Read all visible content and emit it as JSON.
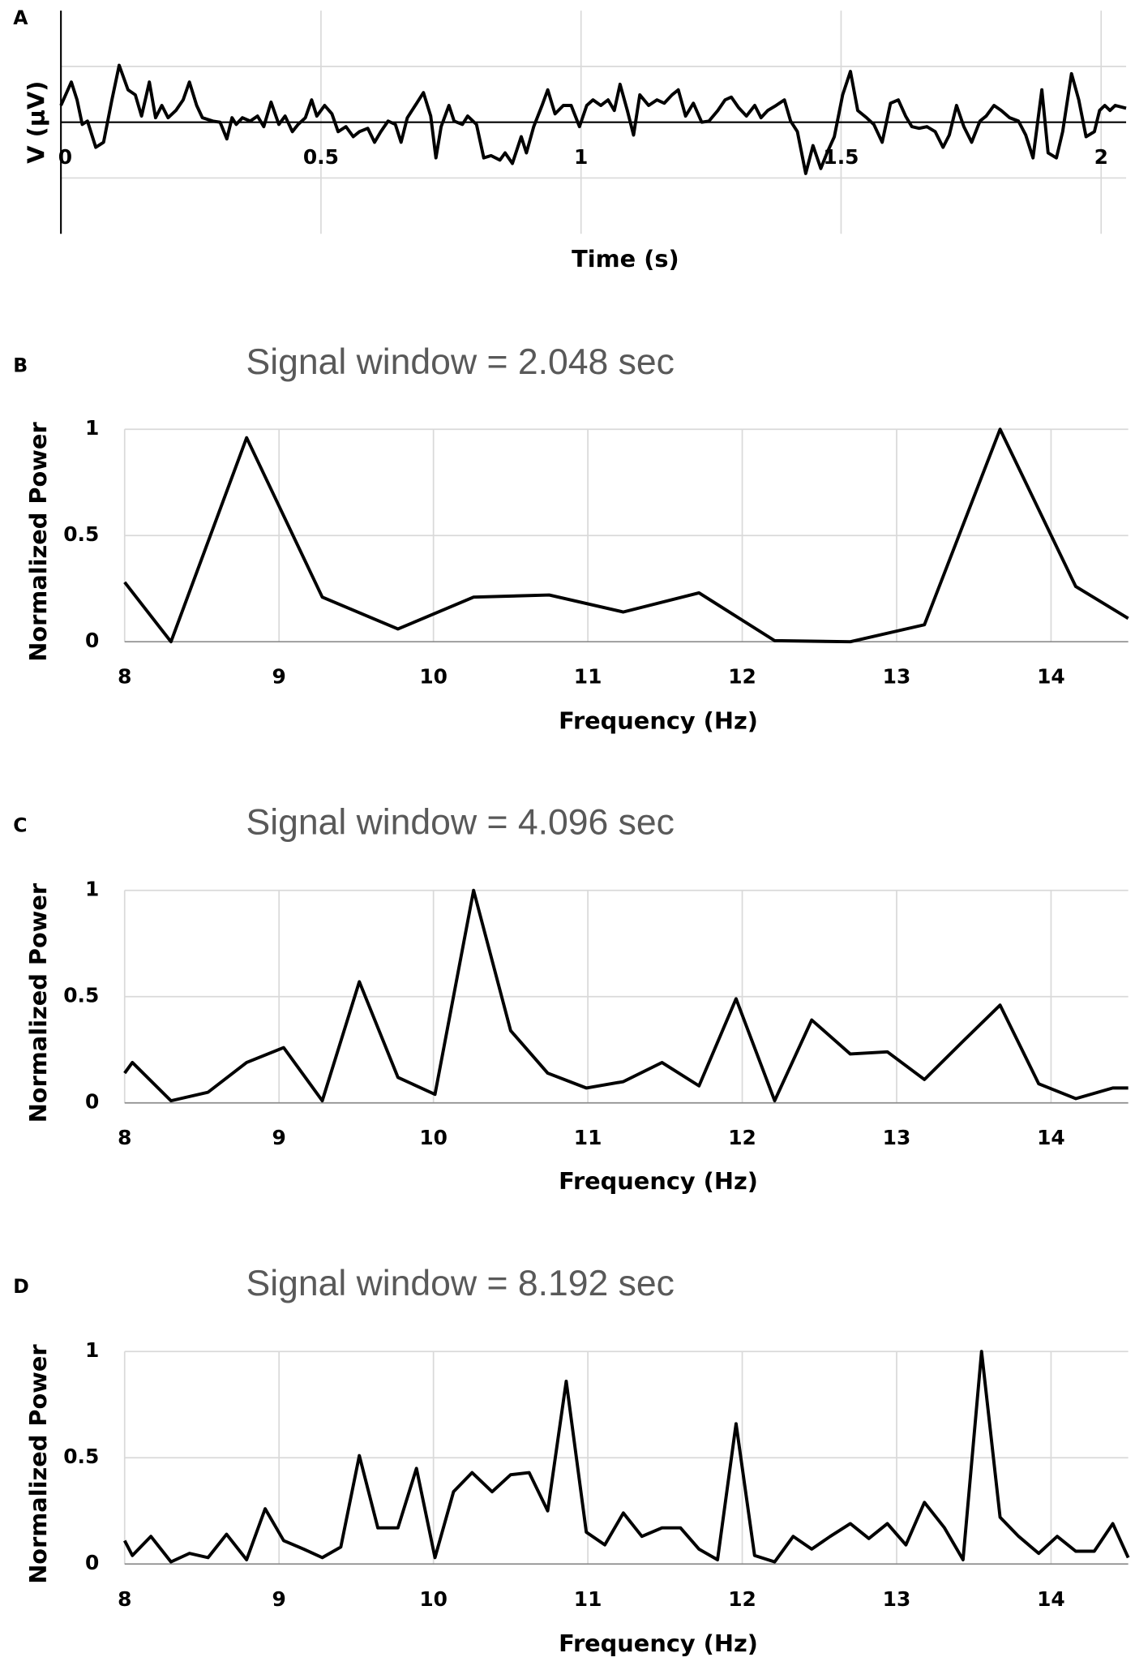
{
  "chart_data": [
    {
      "type": "line",
      "panel_label": "A",
      "x_label": "Time (s)",
      "y_label": "V (µV)",
      "xlim": [
        0,
        2.048
      ],
      "xticks": [
        0,
        0.5,
        1,
        1.5,
        2
      ],
      "ylim": [
        -2,
        2
      ],
      "y_gridlines": [
        -1,
        0,
        1
      ],
      "color": "#000000",
      "x": [
        0,
        0.02,
        0.031,
        0.041,
        0.051,
        0.067,
        0.082,
        0.098,
        0.112,
        0.129,
        0.143,
        0.155,
        0.17,
        0.182,
        0.194,
        0.206,
        0.221,
        0.235,
        0.247,
        0.261,
        0.272,
        0.292,
        0.306,
        0.319,
        0.329,
        0.337,
        0.349,
        0.364,
        0.378,
        0.39,
        0.404,
        0.419,
        0.431,
        0.445,
        0.456,
        0.47,
        0.482,
        0.492,
        0.507,
        0.521,
        0.533,
        0.548,
        0.562,
        0.574,
        0.59,
        0.603,
        0.615,
        0.629,
        0.643,
        0.654,
        0.666,
        0.684,
        0.697,
        0.711,
        0.721,
        0.731,
        0.746,
        0.756,
        0.772,
        0.782,
        0.799,
        0.813,
        0.827,
        0.844,
        0.854,
        0.868,
        0.885,
        0.895,
        0.909,
        0.925,
        0.936,
        0.95,
        0.966,
        0.981,
        0.997,
        1.011,
        1.023,
        1.038,
        1.052,
        1.064,
        1.075,
        1.089,
        1.101,
        1.113,
        1.13,
        1.146,
        1.16,
        1.175,
        1.187,
        1.201,
        1.216,
        1.232,
        1.246,
        1.263,
        1.277,
        1.289,
        1.303,
        1.318,
        1.334,
        1.346,
        1.359,
        1.375,
        1.391,
        1.403,
        1.416,
        1.432,
        1.446,
        1.461,
        1.473,
        1.487,
        1.503,
        1.518,
        1.532,
        1.549,
        1.563,
        1.579,
        1.595,
        1.61,
        1.624,
        1.636,
        1.65,
        1.665,
        1.681,
        1.696,
        1.708,
        1.722,
        1.736,
        1.751,
        1.767,
        1.779,
        1.794,
        1.808,
        1.824,
        1.841,
        1.855,
        1.869,
        1.886,
        1.898,
        1.914,
        1.926,
        1.943,
        1.957,
        1.971,
        1.987,
        1.997,
        2.007,
        2.017,
        2.027,
        2.048
      ],
      "values": [
        0.3,
        0.72,
        0.4,
        -0.04,
        0.02,
        -0.45,
        -0.36,
        0.4,
        1.02,
        0.58,
        0.49,
        0.11,
        0.72,
        0.08,
        0.3,
        0.08,
        0.21,
        0.4,
        0.72,
        0.3,
        0.08,
        0.02,
        0,
        -0.3,
        0.08,
        -0.04,
        0.08,
        0.02,
        0.11,
        -0.08,
        0.36,
        -0.04,
        0.11,
        -0.17,
        -0.04,
        0.08,
        0.4,
        0.11,
        0.3,
        0.15,
        -0.17,
        -0.08,
        -0.26,
        -0.17,
        -0.11,
        -0.36,
        -0.17,
        0.02,
        -0.04,
        -0.36,
        0.08,
        0.34,
        0.53,
        0.11,
        -0.64,
        -0.08,
        0.3,
        0.02,
        -0.04,
        0.11,
        -0.04,
        -0.64,
        -0.6,
        -0.68,
        -0.55,
        -0.74,
        -0.26,
        -0.55,
        -0.08,
        0.3,
        0.58,
        0.15,
        0.3,
        0.3,
        -0.08,
        0.3,
        0.4,
        0.3,
        0.4,
        0.21,
        0.68,
        0.21,
        -0.23,
        0.49,
        0.3,
        0.4,
        0.34,
        0.49,
        0.58,
        0.11,
        0.34,
        0,
        0.02,
        0.21,
        0.4,
        0.45,
        0.26,
        0.11,
        0.3,
        0.08,
        0.21,
        0.3,
        0.4,
        0.02,
        -0.17,
        -0.92,
        -0.42,
        -0.83,
        -0.55,
        -0.26,
        0.49,
        0.91,
        0.21,
        0.08,
        -0.04,
        -0.36,
        0.34,
        0.4,
        0.11,
        -0.08,
        -0.11,
        -0.08,
        -0.17,
        -0.45,
        -0.23,
        0.3,
        -0.08,
        -0.36,
        0.02,
        0.11,
        0.3,
        0.21,
        0.08,
        0.02,
        -0.23,
        -0.64,
        0.58,
        -0.55,
        -0.64,
        -0.17,
        0.87,
        0.4,
        -0.26,
        -0.17,
        0.21,
        0.3,
        0.21,
        0.3,
        0.25
      ]
    },
    {
      "type": "line",
      "panel_label": "B",
      "title": "Signal window = 2.048 sec",
      "x_label": "Frequency (Hz)",
      "y_label": "Normalized Power",
      "xlim": [
        8,
        14.5
      ],
      "xticks": [
        8,
        9,
        10,
        11,
        12,
        13,
        14
      ],
      "ylim": [
        0,
        1
      ],
      "yticks": [
        0,
        0.5,
        1
      ],
      "color": "#000000",
      "x": [
        8.0,
        8.3,
        8.79,
        9.28,
        9.77,
        10.26,
        10.75,
        11.23,
        11.72,
        12.21,
        12.7,
        13.18,
        13.67,
        14.16,
        14.5
      ],
      "values": [
        0.28,
        0.0,
        0.96,
        0.21,
        0.06,
        0.21,
        0.22,
        0.14,
        0.23,
        0.005,
        0.0,
        0.08,
        1.0,
        0.26,
        0.11
      ]
    },
    {
      "type": "line",
      "panel_label": "C",
      "title": "Signal window = 4.096 sec",
      "x_label": "Frequency (Hz)",
      "y_label": "Normalized Power",
      "xlim": [
        8,
        14.5
      ],
      "xticks": [
        8,
        9,
        10,
        11,
        12,
        13,
        14
      ],
      "ylim": [
        0,
        1
      ],
      "yticks": [
        0,
        0.5,
        1
      ],
      "color": "#000000",
      "x": [
        8.0,
        8.05,
        8.3,
        8.54,
        8.79,
        9.03,
        9.28,
        9.52,
        9.77,
        10.01,
        10.26,
        10.5,
        10.74,
        10.99,
        11.23,
        11.48,
        11.72,
        11.96,
        12.21,
        12.45,
        12.7,
        12.94,
        13.18,
        13.43,
        13.67,
        13.92,
        14.16,
        14.4,
        14.5
      ],
      "values": [
        0.14,
        0.19,
        0.01,
        0.05,
        0.19,
        0.26,
        0.01,
        0.57,
        0.12,
        0.04,
        1.0,
        0.34,
        0.14,
        0.07,
        0.1,
        0.19,
        0.08,
        0.49,
        0.01,
        0.39,
        0.23,
        0.24,
        0.11,
        0.29,
        0.46,
        0.09,
        0.02,
        0.07,
        0.07
      ]
    },
    {
      "type": "line",
      "panel_label": "D",
      "title": "Signal window = 8.192 sec",
      "x_label": "Frequency (Hz)",
      "y_label": "Normalized Power",
      "xlim": [
        8,
        14.5
      ],
      "xticks": [
        8,
        9,
        10,
        11,
        12,
        13,
        14
      ],
      "ylim": [
        0,
        1
      ],
      "yticks": [
        0,
        0.5,
        1
      ],
      "color": "#000000",
      "x": [
        8.0,
        8.05,
        8.17,
        8.3,
        8.42,
        8.54,
        8.66,
        8.79,
        8.91,
        9.03,
        9.16,
        9.28,
        9.4,
        9.52,
        9.64,
        9.77,
        9.89,
        10.01,
        10.13,
        10.25,
        10.38,
        10.5,
        10.62,
        10.74,
        10.86,
        10.99,
        11.11,
        11.23,
        11.35,
        11.48,
        11.6,
        11.72,
        11.84,
        11.96,
        12.08,
        12.21,
        12.33,
        12.45,
        12.57,
        12.7,
        12.82,
        12.94,
        13.06,
        13.18,
        13.31,
        13.43,
        13.55,
        13.67,
        13.79,
        13.92,
        14.04,
        14.16,
        14.28,
        14.4,
        14.5
      ],
      "values": [
        0.11,
        0.04,
        0.13,
        0.01,
        0.05,
        0.03,
        0.14,
        0.02,
        0.26,
        0.11,
        0.07,
        0.03,
        0.08,
        0.51,
        0.17,
        0.17,
        0.45,
        0.03,
        0.34,
        0.43,
        0.34,
        0.42,
        0.43,
        0.25,
        0.86,
        0.15,
        0.09,
        0.24,
        0.13,
        0.17,
        0.17,
        0.07,
        0.02,
        0.66,
        0.04,
        0.01,
        0.13,
        0.07,
        0.13,
        0.19,
        0.12,
        0.19,
        0.09,
        0.29,
        0.17,
        0.02,
        1.0,
        0.22,
        0.13,
        0.05,
        0.13,
        0.06,
        0.06,
        0.19,
        0.03
      ]
    }
  ]
}
